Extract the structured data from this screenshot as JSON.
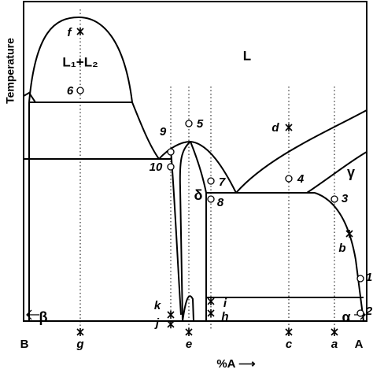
{
  "axis": {
    "y_label": "Temperature",
    "x_label": "%A ⟶",
    "left_end": "B",
    "right_end": "A"
  },
  "phases": {
    "liquid": "L",
    "two_liquids": "L₁+L₂",
    "beta": "β",
    "alpha": "α",
    "gamma": "γ",
    "delta": "δ"
  },
  "compositions": [
    "g",
    "e",
    "c",
    "a"
  ],
  "points": {
    "f": "f",
    "d": "d",
    "b": "b",
    "k": "k",
    "j": "j",
    "i": "i",
    "h": "h",
    "n1": "1",
    "n2": "2",
    "n3": "3",
    "n4": "4",
    "n5": "5",
    "n6": "6",
    "n7": "7",
    "n8": "8",
    "n9": "9",
    "n10": "10"
  }
}
